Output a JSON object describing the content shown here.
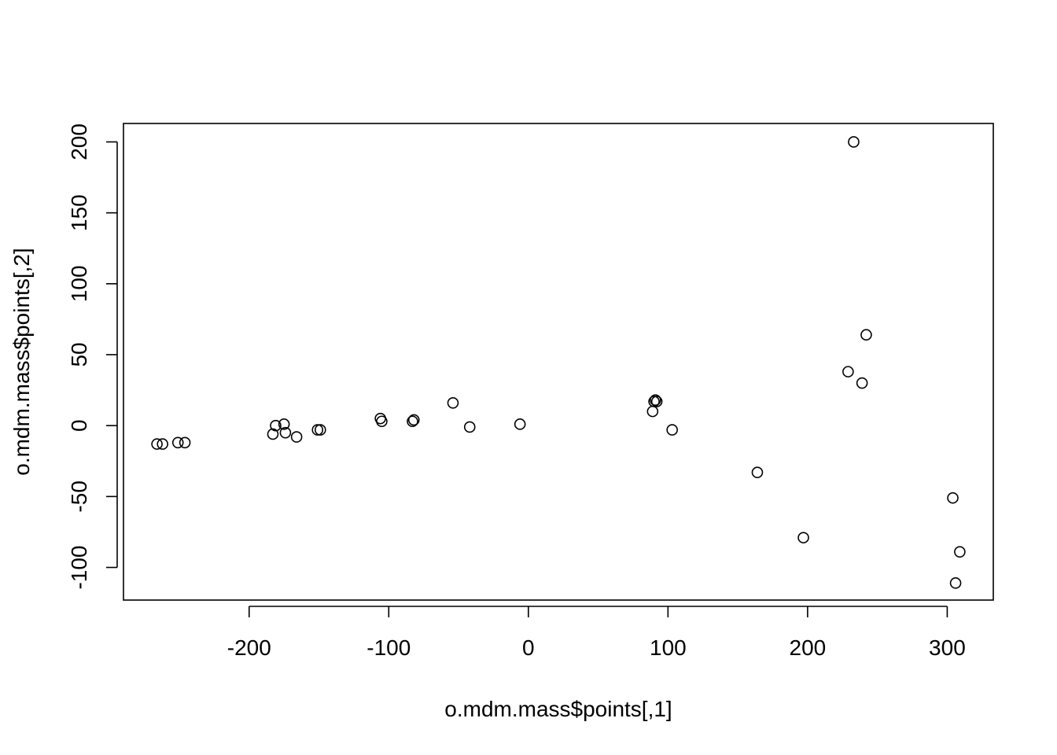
{
  "chart_data": {
    "type": "scatter",
    "title": "",
    "xlabel": "o.mdm.mass$points[,1]",
    "ylabel": "o.mdm.mass$points[,2]",
    "xlim": [
      -290,
      333
    ],
    "ylim": [
      -123,
      213
    ],
    "xticks": [
      -200,
      -100,
      0,
      100,
      200,
      300
    ],
    "yticks": [
      -100,
      -50,
      0,
      50,
      100,
      150,
      200
    ],
    "xtick_labels": [
      "-200",
      "-100",
      "0",
      "100",
      "200",
      "300"
    ],
    "ytick_labels": [
      "-100",
      "-50",
      "0",
      "50",
      "100",
      "150",
      "200"
    ],
    "grid": false,
    "legend": "none",
    "marker": "open-circle",
    "points": [
      {
        "x": -266,
        "y": -13
      },
      {
        "x": -262,
        "y": -13
      },
      {
        "x": -251,
        "y": -12
      },
      {
        "x": -246,
        "y": -12
      },
      {
        "x": -183,
        "y": -6
      },
      {
        "x": -181,
        "y": 0
      },
      {
        "x": -175,
        "y": 1
      },
      {
        "x": -174,
        "y": -5
      },
      {
        "x": -166,
        "y": -8
      },
      {
        "x": -151,
        "y": -3
      },
      {
        "x": -149,
        "y": -3
      },
      {
        "x": -106,
        "y": 5
      },
      {
        "x": -105,
        "y": 3
      },
      {
        "x": -83,
        "y": 3
      },
      {
        "x": -82,
        "y": 4
      },
      {
        "x": -54,
        "y": 16
      },
      {
        "x": -42,
        "y": -1
      },
      {
        "x": -6,
        "y": 1
      },
      {
        "x": 89,
        "y": 10
      },
      {
        "x": 90,
        "y": 17
      },
      {
        "x": 91,
        "y": 18
      },
      {
        "x": 92,
        "y": 17
      },
      {
        "x": 103,
        "y": -3
      },
      {
        "x": 164,
        "y": -33
      },
      {
        "x": 197,
        "y": -79
      },
      {
        "x": 229,
        "y": 38
      },
      {
        "x": 233,
        "y": 200
      },
      {
        "x": 239,
        "y": 30
      },
      {
        "x": 242,
        "y": 64
      },
      {
        "x": 304,
        "y": -51
      },
      {
        "x": 306,
        "y": -111
      },
      {
        "x": 309,
        "y": -89
      }
    ]
  }
}
